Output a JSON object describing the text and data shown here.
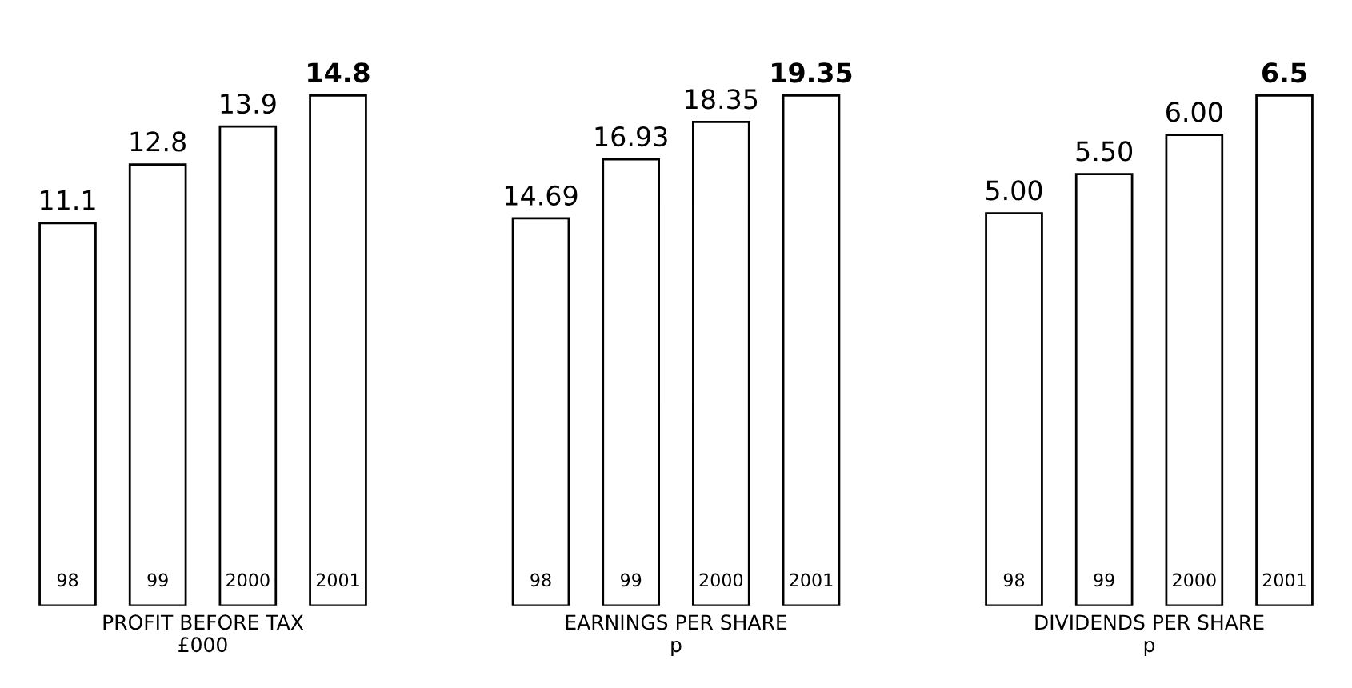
{
  "chart_data": [
    {
      "type": "bar",
      "xlabel": "PROFIT BEFORE TAX\n£000",
      "categories": [
        "98",
        "99",
        "2000",
        "2001"
      ],
      "values": [
        11.1,
        12.8,
        13.9,
        14.8
      ],
      "color": "#ffffff",
      "value_labels": [
        "11.1",
        "12.8",
        "13.9",
        "14.8"
      ]
    },
    {
      "type": "bar",
      "xlabel": "EARNINGS PER SHARE\np",
      "categories": [
        "98",
        "99",
        "2000",
        "2001"
      ],
      "values": [
        14.69,
        16.93,
        18.35,
        19.35
      ],
      "color": "#ffffff",
      "value_labels": [
        "14.69",
        "16.93",
        "18.35",
        "19.35"
      ]
    },
    {
      "type": "bar",
      "xlabel": "DIVIDENDS PER SHARE\np",
      "categories": [
        "98",
        "99",
        "2000",
        "2001"
      ],
      "values": [
        5.0,
        5.5,
        6.0,
        6.5
      ],
      "color": "#ffffff",
      "value_labels": [
        "5.00",
        "5.50",
        "6.00",
        "6.5"
      ]
    }
  ]
}
